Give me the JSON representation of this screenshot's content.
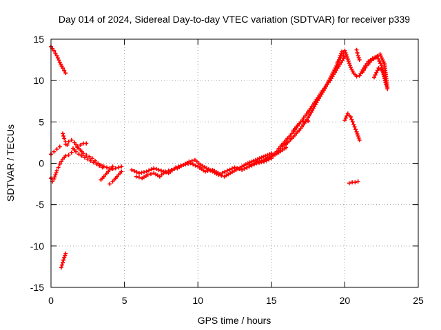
{
  "chart_data": {
    "type": "scatter",
    "title": "Day 014 of 2024, Sidereal Day-to-day VTEC variation (SDTVAR) for receiver p339",
    "xlabel": "GPS time / hours",
    "ylabel": "SDTVAR / TECUs",
    "xlim": [
      0,
      25
    ],
    "ylim": [
      -15,
      15
    ],
    "xticks": [
      0,
      5,
      10,
      15,
      20,
      25
    ],
    "yticks": [
      -15,
      -10,
      -5,
      0,
      5,
      10,
      15
    ],
    "grid": true,
    "marker": "plus",
    "series": [
      {
        "name": "SDTVAR (red crosses)",
        "color": "#ff0000",
        "segments": [
          {
            "x": [
              0.0,
              0.2,
              0.4,
              0.6,
              0.8,
              1.0
            ],
            "y": [
              14.1,
              13.6,
              13.0,
              12.2,
              11.5,
              10.9
            ]
          },
          {
            "x": [
              0.0,
              0.2,
              0.4,
              0.6
            ],
            "y": [
              1.1,
              1.4,
              1.7,
              2.0
            ]
          },
          {
            "x": [
              0.0,
              0.1,
              0.2,
              0.3,
              0.4,
              0.5,
              0.6,
              0.7,
              0.8,
              0.9,
              1.0
            ],
            "y": [
              -1.8,
              -2.2,
              -1.9,
              -1.4,
              -0.9,
              -0.5,
              -0.1,
              0.2,
              0.5,
              0.7,
              0.9
            ]
          },
          {
            "x": [
              0.7,
              0.8,
              0.9,
              1.0
            ],
            "y": [
              -12.6,
              -12.0,
              -11.4,
              -10.9
            ]
          },
          {
            "x": [
              0.8,
              0.9,
              1.0,
              1.1
            ],
            "y": [
              3.6,
              3.0,
              2.6,
              2.2
            ]
          },
          {
            "x": [
              1.0,
              1.2,
              1.4,
              1.6,
              1.8,
              2.0,
              2.2,
              2.4,
              2.6,
              2.8,
              3.0,
              3.2,
              3.4,
              3.6,
              3.8,
              4.0,
              4.2,
              4.4,
              4.6,
              4.8
            ],
            "y": [
              2.3,
              2.6,
              2.8,
              2.5,
              2.0,
              1.6,
              1.2,
              1.0,
              0.8,
              0.6,
              0.3,
              0.0,
              -0.2,
              -0.4,
              -0.5,
              -0.6,
              -0.7,
              -0.6,
              -0.5,
              -0.4
            ]
          },
          {
            "x": [
              1.2,
              1.4,
              1.6,
              1.8,
              2.0,
              2.2,
              2.4
            ],
            "y": [
              1.0,
              1.3,
              1.6,
              1.9,
              2.2,
              2.4,
              2.4
            ]
          },
          {
            "x": [
              1.5,
              1.7,
              1.9,
              2.1,
              2.3,
              2.5,
              2.7,
              2.9,
              3.1,
              3.3,
              3.5
            ],
            "y": [
              1.8,
              1.4,
              1.1,
              0.9,
              0.7,
              0.5,
              0.3,
              0.1,
              -0.1,
              -0.3,
              -0.5
            ]
          },
          {
            "x": [
              3.4,
              3.6,
              3.8,
              4.0,
              4.2
            ],
            "y": [
              -2.0,
              -1.6,
              -1.2,
              -0.8,
              -0.4
            ]
          },
          {
            "x": [
              4.0,
              4.2,
              4.4,
              4.6,
              4.8
            ],
            "y": [
              -2.5,
              -2.2,
              -1.8,
              -1.4,
              -1.0
            ]
          },
          {
            "x": [
              5.5,
              6.0,
              6.5,
              7.0,
              7.5,
              8.0,
              8.5,
              9.0,
              9.5,
              10.0,
              10.5,
              11.0,
              11.5,
              12.0,
              12.5,
              13.0,
              13.5,
              14.0,
              14.5,
              15.0
            ],
            "y": [
              -0.8,
              -1.2,
              -1.0,
              -0.6,
              -0.9,
              -1.2,
              -0.5,
              -0.2,
              0.0,
              -0.4,
              -1.0,
              -0.8,
              -1.3,
              -0.9,
              -0.5,
              -0.8,
              -0.4,
              0.0,
              0.2,
              0.6
            ]
          },
          {
            "x": [
              5.8,
              6.2,
              6.6,
              7.0,
              7.4,
              7.8,
              8.2,
              8.6,
              9.0,
              9.4,
              9.8,
              10.2,
              10.6,
              11.0,
              11.4,
              11.8,
              12.2,
              12.6,
              13.0,
              13.4,
              13.8,
              14.2,
              14.6,
              15.0
            ],
            "y": [
              -1.6,
              -1.8,
              -1.4,
              -1.2,
              -1.6,
              -1.0,
              -0.8,
              -0.6,
              -0.2,
              0.2,
              0.4,
              -0.2,
              -0.6,
              -1.0,
              -1.4,
              -1.6,
              -1.2,
              -0.8,
              -0.4,
              0.0,
              0.3,
              0.6,
              0.9,
              1.2
            ]
          },
          {
            "x": [
              13.5,
              14.0,
              14.5,
              15.0,
              15.5,
              16.0
            ],
            "y": [
              -0.2,
              0.1,
              0.4,
              0.8,
              1.3,
              1.9
            ]
          },
          {
            "x": [
              14.5,
              15.0,
              15.5,
              16.0
            ],
            "y": [
              0.3,
              0.9,
              1.6,
              2.4
            ]
          },
          {
            "x": [
              15.5,
              16.0,
              16.5,
              17.0,
              17.5,
              18.0,
              18.5,
              19.0,
              19.5,
              20.0
            ],
            "y": [
              1.8,
              2.8,
              3.8,
              5.0,
              6.2,
              7.5,
              8.8,
              10.0,
              11.5,
              12.9
            ]
          },
          {
            "x": [
              16.0,
              16.5,
              17.0,
              17.5,
              18.0,
              18.5,
              19.0,
              19.5,
              19.8
            ],
            "y": [
              2.3,
              3.2,
              4.2,
              5.5,
              7.1,
              8.6,
              10.3,
              12.0,
              13.5
            ]
          },
          {
            "x": [
              16.5,
              17.0,
              17.5
            ],
            "y": [
              4.0,
              5.0,
              5.1
            ]
          },
          {
            "x": [
              19.5,
              19.8,
              20.0,
              20.2,
              20.4,
              20.6,
              20.8,
              21.0
            ],
            "y": [
              12.2,
              13.0,
              13.6,
              12.6,
              11.6,
              10.9,
              10.5,
              10.6
            ]
          },
          {
            "x": [
              20.0,
              20.2,
              20.4,
              20.6,
              20.8,
              21.0
            ],
            "y": [
              5.2,
              6.0,
              5.6,
              4.7,
              3.8,
              2.8
            ]
          },
          {
            "x": [
              20.3,
              20.5,
              20.7,
              20.9
            ],
            "y": [
              -2.4,
              -2.3,
              -2.3,
              -2.2
            ]
          },
          {
            "x": [
              20.8,
              20.9,
              21.0
            ],
            "y": [
              13.7,
              13.0,
              12.5
            ]
          },
          {
            "x": [
              21.0,
              21.3,
              21.6,
              21.9,
              22.2,
              22.5,
              22.8
            ],
            "y": [
              10.6,
              11.5,
              12.3,
              12.7,
              12.9,
              11.8,
              9.5
            ]
          },
          {
            "x": [
              21.2,
              21.5,
              21.8,
              22.1,
              22.4,
              22.7,
              22.9
            ],
            "y": [
              11.0,
              11.8,
              12.4,
              12.8,
              13.2,
              12.0,
              9.2
            ]
          },
          {
            "x": [
              22.0,
              22.3,
              22.6,
              22.9
            ],
            "y": [
              10.4,
              11.5,
              11.2,
              9.0
            ]
          }
        ]
      }
    ]
  }
}
